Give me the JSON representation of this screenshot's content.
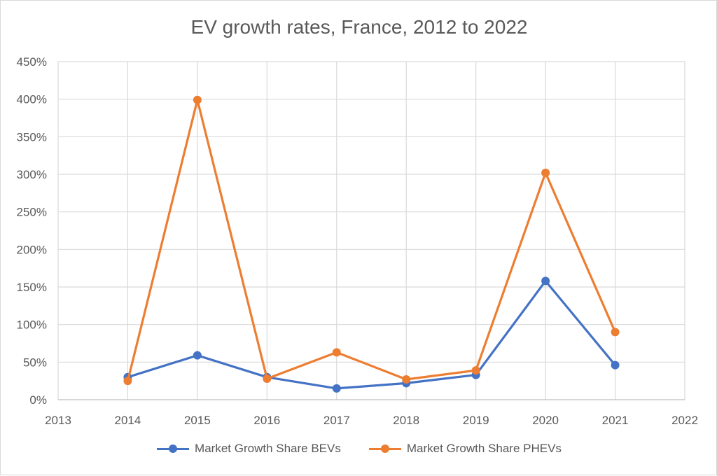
{
  "chart_data": {
    "type": "line",
    "title": "EV growth rates, France, 2012 to 2022",
    "xlabel": "",
    "ylabel": "",
    "x": [
      "2013",
      "2014",
      "2015",
      "2016",
      "2017",
      "2018",
      "2019",
      "2020",
      "2021",
      "2022"
    ],
    "y_ticks": [
      "0%",
      "50%",
      "100%",
      "150%",
      "200%",
      "250%",
      "300%",
      "350%",
      "400%",
      "450%"
    ],
    "ylim": [
      0,
      450
    ],
    "y_unit": "%",
    "grid": true,
    "legend_position": "bottom",
    "series": [
      {
        "name": "Market Growth Share BEVs",
        "color": "#4472c4",
        "x": [
          "2014",
          "2015",
          "2016",
          "2017",
          "2018",
          "2019",
          "2020",
          "2021"
        ],
        "values": [
          30,
          59,
          30,
          15,
          22,
          33,
          158,
          46
        ]
      },
      {
        "name": "Market Growth Share PHEVs",
        "color": "#ed7d31",
        "x": [
          "2014",
          "2015",
          "2016",
          "2017",
          "2018",
          "2019",
          "2020",
          "2021"
        ],
        "values": [
          25,
          399,
          28,
          63,
          27,
          39,
          302,
          90
        ]
      }
    ]
  }
}
